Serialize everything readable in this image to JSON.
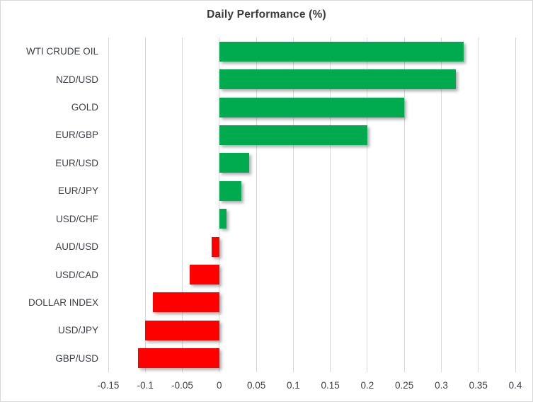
{
  "title": "Daily Performance (%)",
  "colors": {
    "positive_bar": "#00ab50",
    "negative_bar": "#ff0000",
    "gridline": "#d9d9d9",
    "axis_text": "#3f4148",
    "title_text": "#3b3b3b",
    "frame_border": "#d8d8d8"
  },
  "chart_data": {
    "type": "bar",
    "orientation": "horizontal",
    "title": "Daily Performance (%)",
    "categories": [
      "WTI CRUDE OIL",
      "NZD/USD",
      "GOLD",
      "EUR/GBP",
      "EUR/USD",
      "EUR/JPY",
      "USD/CHF",
      "AUD/USD",
      "USD/CAD",
      "DOLLAR INDEX",
      "USD/JPY",
      "GBP/USD"
    ],
    "values": [
      0.33,
      0.32,
      0.25,
      0.2,
      0.04,
      0.03,
      0.01,
      -0.01,
      -0.04,
      -0.09,
      -0.1,
      -0.11
    ],
    "xlabel": "",
    "ylabel": "",
    "xlim": [
      -0.15,
      0.4
    ],
    "xticks": [
      -0.15,
      -0.1,
      -0.05,
      0,
      0.05,
      0.1,
      0.15,
      0.2,
      0.25,
      0.3,
      0.35,
      0.4
    ],
    "xtick_labels": [
      "-0.15",
      "-0.1",
      "-0.05",
      "0",
      "0.05",
      "0.1",
      "0.15",
      "0.2",
      "0.25",
      "0.3",
      "0.35",
      "0.4"
    ],
    "grid": true,
    "legend": false
  }
}
